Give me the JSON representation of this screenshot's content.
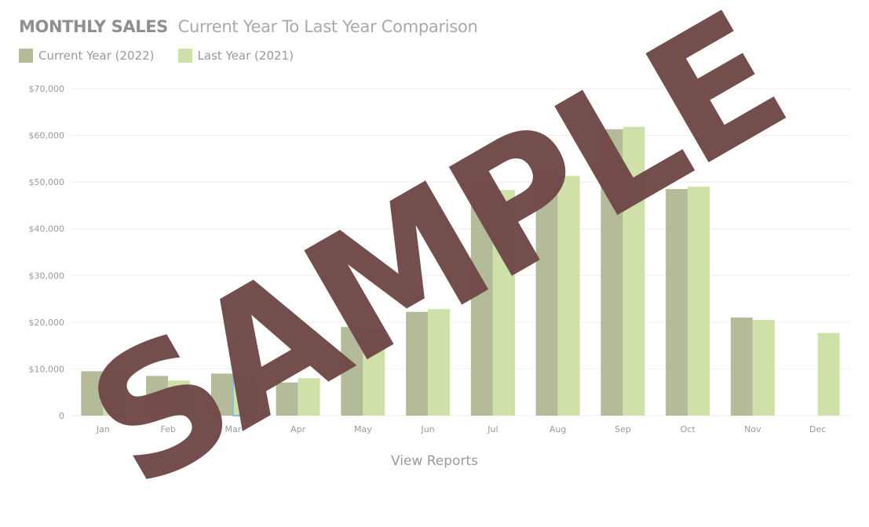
{
  "header": {
    "title": "MONTHLY SALES",
    "subtitle": "Current Year To Last Year Comparison"
  },
  "legend": {
    "current_label": "Current Year (2022)",
    "last_label": "Last Year  (2021)"
  },
  "colors": {
    "current": "#b4bb98",
    "last": "#cfe0a8",
    "grid": "#eeeeee",
    "highlight": "#8bbde0",
    "watermark": "#704848"
  },
  "watermark_text": "SAMPLE",
  "footer": {
    "link_label": "View Reports"
  },
  "chart_data": {
    "type": "bar",
    "title": "MONTHLY SALES",
    "subtitle": "Current Year To Last Year Comparison",
    "categories": [
      "Jan",
      "Feb",
      "Mar",
      "Apr",
      "May",
      "Jun",
      "Jul",
      "Aug",
      "Sep",
      "Oct",
      "Nov",
      "Dec"
    ],
    "series": [
      {
        "name": "Current Year (2022)",
        "values": [
          9500,
          8500,
          9000,
          7100,
          19000,
          22200,
          49500,
          52800,
          61300,
          48500,
          21000,
          null
        ]
      },
      {
        "name": "Last Year  (2021)",
        "values": [
          9200,
          7500,
          8300,
          8000,
          18200,
          22800,
          48300,
          51300,
          61800,
          49000,
          20500,
          17700
        ]
      }
    ],
    "ylim": [
      0,
      70000
    ],
    "yticks": [
      "$70,000",
      "$60,000",
      "$50,000",
      "$40,000",
      "$30,000",
      "$20,000",
      "$10,000",
      "0"
    ],
    "highlighted": {
      "category": "Mar",
      "series": "Last Year  (2021)"
    },
    "xlabel": "",
    "ylabel": "",
    "grid": true,
    "legend_position": "top-left"
  }
}
